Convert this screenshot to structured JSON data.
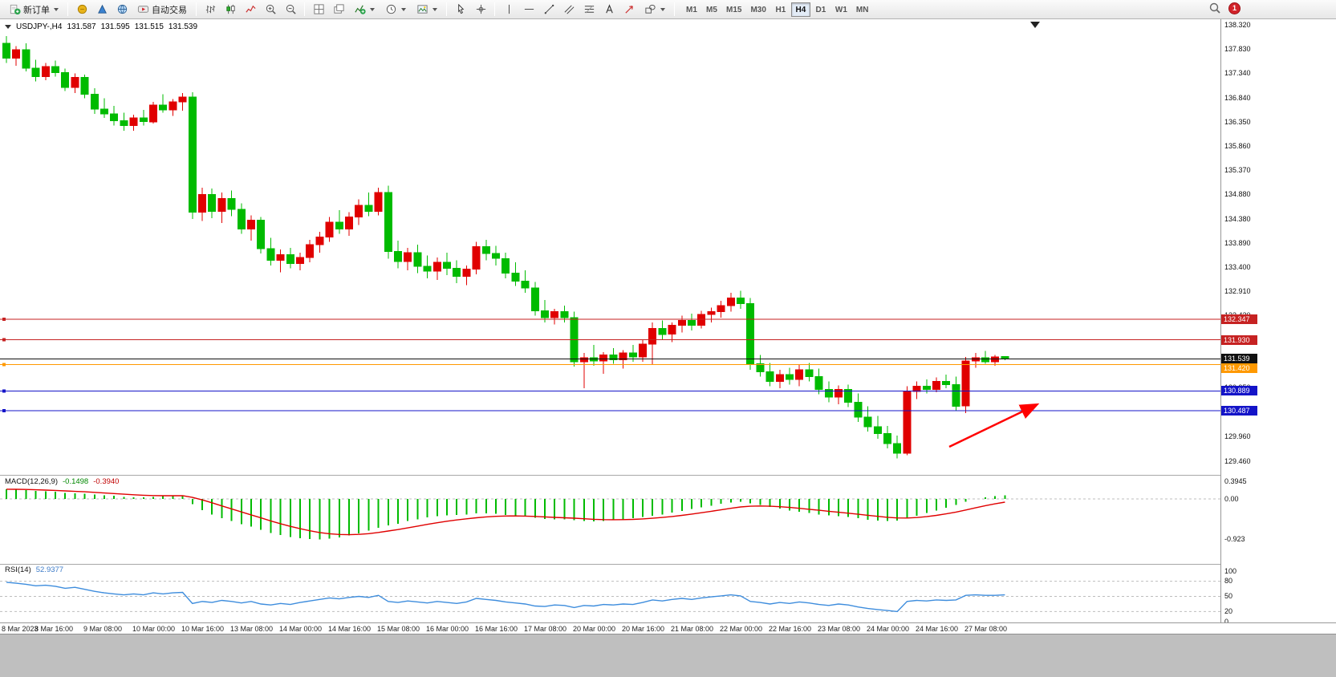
{
  "toolbar": {
    "new_order": "新订单",
    "autotrading": "自动交易",
    "timeframes": [
      "M1",
      "M5",
      "M15",
      "M30",
      "H1",
      "H4",
      "D1",
      "W1",
      "MN"
    ],
    "active_timeframe": "H4",
    "notification_count": "1",
    "icons": [
      "new-order-icon",
      "market-icon",
      "signals-icon",
      "community-icon",
      "autotrading-icon",
      "bar-chart-icon",
      "candlestick-chart-icon",
      "line-chart-icon",
      "zoom-in-icon",
      "zoom-out-icon",
      "tile-windows-icon",
      "cascade-windows-icon",
      "indicators-icon",
      "period-clock-icon",
      "template-icon",
      "cursor-icon",
      "crosshair-icon",
      "vertical-line-icon",
      "horizontal-line-icon",
      "trendline-icon",
      "channel-icon",
      "fibonacci-icon",
      "text-tool-icon",
      "arrow-tool-icon",
      "shapes-icon",
      "search-icon"
    ]
  },
  "chart": {
    "header": {
      "symbol_period": "USDJPY-,H4",
      "open": "131.587",
      "high": "131.595",
      "low": "131.515",
      "close": "131.539"
    },
    "price_axis_labels": [
      "138.320",
      "137.830",
      "137.340",
      "136.840",
      "136.350",
      "135.860",
      "135.370",
      "134.880",
      "134.380",
      "133.890",
      "133.400",
      "132.910",
      "132.420",
      "131.930",
      "131.440",
      "130.950",
      "130.460",
      "129.960",
      "129.460"
    ],
    "lines": [
      {
        "label": "132.347",
        "value": 132.347,
        "color": "#c62222",
        "current": false
      },
      {
        "label": "131.930",
        "value": 131.93,
        "color": "#c62222",
        "current": false
      },
      {
        "label": "131.539",
        "value": 131.539,
        "color": "#111111",
        "current": true
      },
      {
        "label": "131.420",
        "value": 131.42,
        "color": "#ff9900",
        "current": false
      },
      {
        "label": "130.889",
        "value": 130.889,
        "color": "#1414c8",
        "current": false
      },
      {
        "label": "130.487",
        "value": 130.487,
        "color": "#1414c8",
        "current": false
      }
    ],
    "annotations": [
      {
        "type": "arrow-up-right",
        "color": "#ff0000"
      }
    ]
  },
  "chart_data": {
    "type": "candlestick",
    "symbol": "USDJPY-",
    "timeframe": "H4",
    "up_color": "#e00000",
    "down_color": "#00bb00",
    "y_range": [
      129.3,
      138.45
    ],
    "time_labels": [
      "8 Mar 2023",
      "8 Mar 16:00",
      "9 Mar 08:00",
      "10 Mar 00:00",
      "10 Mar 16:00",
      "13 Mar 08:00",
      "14 Mar 00:00",
      "14 Mar 16:00",
      "15 Mar 08:00",
      "16 Mar 00:00",
      "16 Mar 16:00",
      "17 Mar 08:00",
      "20 Mar 00:00",
      "20 Mar 16:00",
      "21 Mar 08:00",
      "22 Mar 00:00",
      "22 Mar 16:00",
      "23 Mar 08:00",
      "24 Mar 00:00",
      "24 Mar 16:00",
      "27 Mar 08:00"
    ],
    "ohlc": [
      [
        137.95,
        138.1,
        137.55,
        137.65
      ],
      [
        137.65,
        137.9,
        137.5,
        137.82
      ],
      [
        137.82,
        137.95,
        137.38,
        137.45
      ],
      [
        137.45,
        137.62,
        137.18,
        137.28
      ],
      [
        137.28,
        137.55,
        137.2,
        137.48
      ],
      [
        137.48,
        137.6,
        137.28,
        137.36
      ],
      [
        137.36,
        137.44,
        136.98,
        137.06
      ],
      [
        137.06,
        137.34,
        136.94,
        137.26
      ],
      [
        137.26,
        137.32,
        136.84,
        136.92
      ],
      [
        136.92,
        137.04,
        136.52,
        136.62
      ],
      [
        136.62,
        136.84,
        136.44,
        136.52
      ],
      [
        136.52,
        136.68,
        136.28,
        136.38
      ],
      [
        136.38,
        136.54,
        136.18,
        136.28
      ],
      [
        136.28,
        136.5,
        136.18,
        136.44
      ],
      [
        136.44,
        136.6,
        136.28,
        136.36
      ],
      [
        136.36,
        136.76,
        136.32,
        136.7
      ],
      [
        136.7,
        136.92,
        136.54,
        136.6
      ],
      [
        136.6,
        136.82,
        136.48,
        136.76
      ],
      [
        136.76,
        136.94,
        136.58,
        136.86
      ],
      [
        136.86,
        136.96,
        134.38,
        134.52
      ],
      [
        134.52,
        135.02,
        134.34,
        134.88
      ],
      [
        134.88,
        135.0,
        134.4,
        134.54
      ],
      [
        134.54,
        134.92,
        134.3,
        134.8
      ],
      [
        134.8,
        134.96,
        134.44,
        134.58
      ],
      [
        134.58,
        134.7,
        134.08,
        134.18
      ],
      [
        134.18,
        134.46,
        133.94,
        134.36
      ],
      [
        134.36,
        134.42,
        133.68,
        133.78
      ],
      [
        133.78,
        134.0,
        133.44,
        133.54
      ],
      [
        133.54,
        133.76,
        133.3,
        133.66
      ],
      [
        133.66,
        133.8,
        133.38,
        133.48
      ],
      [
        133.48,
        133.7,
        133.34,
        133.6
      ],
      [
        133.6,
        133.96,
        133.5,
        133.86
      ],
      [
        133.86,
        134.12,
        133.7,
        134.02
      ],
      [
        134.02,
        134.42,
        133.92,
        134.32
      ],
      [
        134.32,
        134.56,
        134.08,
        134.18
      ],
      [
        134.18,
        134.52,
        134.04,
        134.42
      ],
      [
        134.42,
        134.78,
        134.26,
        134.66
      ],
      [
        134.66,
        134.92,
        134.44,
        134.54
      ],
      [
        134.54,
        135.02,
        134.46,
        134.92
      ],
      [
        134.92,
        135.06,
        133.58,
        133.72
      ],
      [
        133.72,
        133.94,
        133.38,
        133.52
      ],
      [
        133.52,
        133.8,
        133.34,
        133.7
      ],
      [
        133.7,
        133.86,
        133.28,
        133.42
      ],
      [
        133.42,
        133.64,
        133.18,
        133.32
      ],
      [
        133.32,
        133.6,
        133.14,
        133.5
      ],
      [
        133.5,
        133.7,
        133.24,
        133.38
      ],
      [
        133.38,
        133.54,
        133.08,
        133.22
      ],
      [
        133.22,
        133.44,
        133.04,
        133.36
      ],
      [
        133.36,
        133.92,
        133.26,
        133.82
      ],
      [
        133.82,
        133.96,
        133.54,
        133.68
      ],
      [
        133.68,
        133.84,
        133.44,
        133.58
      ],
      [
        133.58,
        133.7,
        133.18,
        133.28
      ],
      [
        133.28,
        133.5,
        133.02,
        133.12
      ],
      [
        133.12,
        133.34,
        132.88,
        132.98
      ],
      [
        132.98,
        133.1,
        132.42,
        132.52
      ],
      [
        132.52,
        132.74,
        132.28,
        132.38
      ],
      [
        132.38,
        132.56,
        132.24,
        132.5
      ],
      [
        132.5,
        132.62,
        132.28,
        132.38
      ],
      [
        132.38,
        132.5,
        131.38,
        131.48
      ],
      [
        131.48,
        131.66,
        130.94,
        131.56
      ],
      [
        131.56,
        131.82,
        131.4,
        131.5
      ],
      [
        131.5,
        131.68,
        131.24,
        131.62
      ],
      [
        131.62,
        131.76,
        131.44,
        131.52
      ],
      [
        131.52,
        131.72,
        131.34,
        131.66
      ],
      [
        131.66,
        131.82,
        131.48,
        131.58
      ],
      [
        131.58,
        131.92,
        131.48,
        131.84
      ],
      [
        131.84,
        132.28,
        131.42,
        132.16
      ],
      [
        132.16,
        132.32,
        131.92,
        132.04
      ],
      [
        132.04,
        132.28,
        131.88,
        132.22
      ],
      [
        132.22,
        132.42,
        132.08,
        132.32
      ],
      [
        132.32,
        132.46,
        132.12,
        132.22
      ],
      [
        132.22,
        132.52,
        132.16,
        132.44
      ],
      [
        132.44,
        132.58,
        132.28,
        132.5
      ],
      [
        132.5,
        132.72,
        132.38,
        132.62
      ],
      [
        132.62,
        132.88,
        132.5,
        132.78
      ],
      [
        132.78,
        132.92,
        132.56,
        132.66
      ],
      [
        132.66,
        132.78,
        131.32,
        131.44
      ],
      [
        131.44,
        131.62,
        131.18,
        131.28
      ],
      [
        131.28,
        131.46,
        130.98,
        131.08
      ],
      [
        131.08,
        131.32,
        130.94,
        131.22
      ],
      [
        131.22,
        131.36,
        131.02,
        131.12
      ],
      [
        131.12,
        131.42,
        130.98,
        131.32
      ],
      [
        131.32,
        131.46,
        131.08,
        131.18
      ],
      [
        131.18,
        131.34,
        130.82,
        130.92
      ],
      [
        130.92,
        131.08,
        130.66,
        130.76
      ],
      [
        130.76,
        131.0,
        130.62,
        130.92
      ],
      [
        130.92,
        131.02,
        130.56,
        130.66
      ],
      [
        130.66,
        130.84,
        130.26,
        130.36
      ],
      [
        130.36,
        130.58,
        130.06,
        130.16
      ],
      [
        130.16,
        130.38,
        129.92,
        130.02
      ],
      [
        130.02,
        130.18,
        129.72,
        129.82
      ],
      [
        129.82,
        129.98,
        129.52,
        129.62
      ],
      [
        129.62,
        130.98,
        129.58,
        130.88
      ],
      [
        130.88,
        131.08,
        130.72,
        130.98
      ],
      [
        130.98,
        131.12,
        130.84,
        130.92
      ],
      [
        130.92,
        131.16,
        130.86,
        131.08
      ],
      [
        131.08,
        131.22,
        130.94,
        131.02
      ],
      [
        131.02,
        131.18,
        130.48,
        130.58
      ],
      [
        130.58,
        131.58,
        130.44,
        131.5
      ],
      [
        131.5,
        131.66,
        131.36,
        131.56
      ],
      [
        131.56,
        131.7,
        131.44,
        131.48
      ],
      [
        131.48,
        131.62,
        131.4,
        131.58
      ],
      [
        131.587,
        131.595,
        131.515,
        131.539
      ]
    ],
    "indicators": {
      "macd": {
        "title": "MACD(12,26,9)",
        "value_main": "-0.1498",
        "value_signal": "-0.3940",
        "axis": [
          "0.3945",
          "0.00",
          "-0.923"
        ],
        "histogram_color": "#00bb00",
        "signal_color": "#e00000",
        "histogram": [
          0.22,
          0.21,
          0.2,
          0.18,
          0.17,
          0.16,
          0.14,
          0.13,
          0.12,
          0.1,
          0.08,
          0.07,
          0.05,
          0.04,
          0.04,
          0.05,
          0.06,
          0.07,
          0.08,
          -0.12,
          -0.25,
          -0.35,
          -0.44,
          -0.5,
          -0.57,
          -0.63,
          -0.7,
          -0.77,
          -0.82,
          -0.86,
          -0.89,
          -0.91,
          -0.92,
          -0.9,
          -0.87,
          -0.83,
          -0.78,
          -0.72,
          -0.65,
          -0.6,
          -0.56,
          -0.5,
          -0.46,
          -0.42,
          -0.39,
          -0.37,
          -0.36,
          -0.35,
          -0.33,
          -0.33,
          -0.34,
          -0.36,
          -0.38,
          -0.4,
          -0.43,
          -0.45,
          -0.46,
          -0.46,
          -0.48,
          -0.5,
          -0.51,
          -0.5,
          -0.48,
          -0.46,
          -0.44,
          -0.41,
          -0.38,
          -0.35,
          -0.31,
          -0.27,
          -0.23,
          -0.19,
          -0.15,
          -0.11,
          -0.08,
          -0.06,
          -0.1,
          -0.14,
          -0.18,
          -0.22,
          -0.26,
          -0.29,
          -0.32,
          -0.35,
          -0.37,
          -0.39,
          -0.41,
          -0.44,
          -0.47,
          -0.49,
          -0.5,
          -0.49,
          -0.44,
          -0.38,
          -0.32,
          -0.26,
          -0.2,
          -0.14,
          -0.06,
          0.0,
          0.04,
          0.06,
          0.08
        ]
      },
      "rsi": {
        "title": "RSI(14)",
        "value": "52.9377",
        "axis": [
          "100",
          "80",
          "50",
          "20",
          "0"
        ],
        "levels": [
          80,
          50,
          20
        ],
        "line_color": "#3e8ddd",
        "values": [
          78,
          76,
          74,
          71,
          72,
          70,
          66,
          68,
          64,
          60,
          57,
          55,
          53,
          55,
          53,
          57,
          55,
          57,
          58,
          36,
          40,
          38,
          42,
          40,
          37,
          40,
          35,
          33,
          36,
          34,
          38,
          41,
          44,
          47,
          45,
          48,
          50,
          48,
          52,
          40,
          38,
          41,
          39,
          37,
          40,
          38,
          36,
          39,
          46,
          44,
          42,
          39,
          37,
          35,
          31,
          30,
          33,
          32,
          28,
          32,
          31,
          34,
          33,
          35,
          34,
          38,
          43,
          41,
          44,
          46,
          44,
          47,
          49,
          51,
          53,
          51,
          40,
          38,
          35,
          38,
          36,
          39,
          37,
          34,
          32,
          35,
          33,
          29,
          26,
          24,
          22,
          20,
          40,
          42,
          41,
          43,
          42,
          43,
          52,
          53,
          52,
          52,
          52.94
        ]
      }
    }
  }
}
